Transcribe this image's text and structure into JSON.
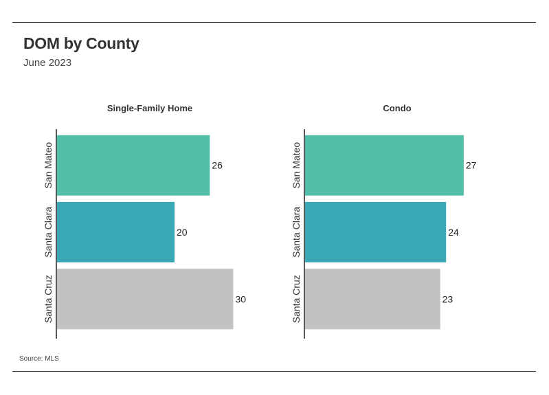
{
  "title": "DOM by County",
  "subtitle": "June 2023",
  "source": "Source: MLS",
  "chart_data": [
    {
      "type": "bar",
      "orientation": "horizontal",
      "title": "Single-Family Home",
      "categories": [
        "San Mateo",
        "Santa Clara",
        "Santa Cruz"
      ],
      "values": [
        26,
        20,
        30
      ],
      "colors": [
        "#52bfaa",
        "#3aa7b4",
        "#c2c2c2"
      ],
      "xlim": [
        0,
        35
      ],
      "grid": false,
      "data_labels": true
    },
    {
      "type": "bar",
      "orientation": "horizontal",
      "title": "Condo",
      "categories": [
        "San Mateo",
        "Santa Clara",
        "Santa Cruz"
      ],
      "values": [
        27,
        24,
        23
      ],
      "colors": [
        "#52bfaa",
        "#3aa7b4",
        "#c2c2c2"
      ],
      "xlim": [
        0,
        35
      ],
      "grid": false,
      "data_labels": true
    }
  ]
}
